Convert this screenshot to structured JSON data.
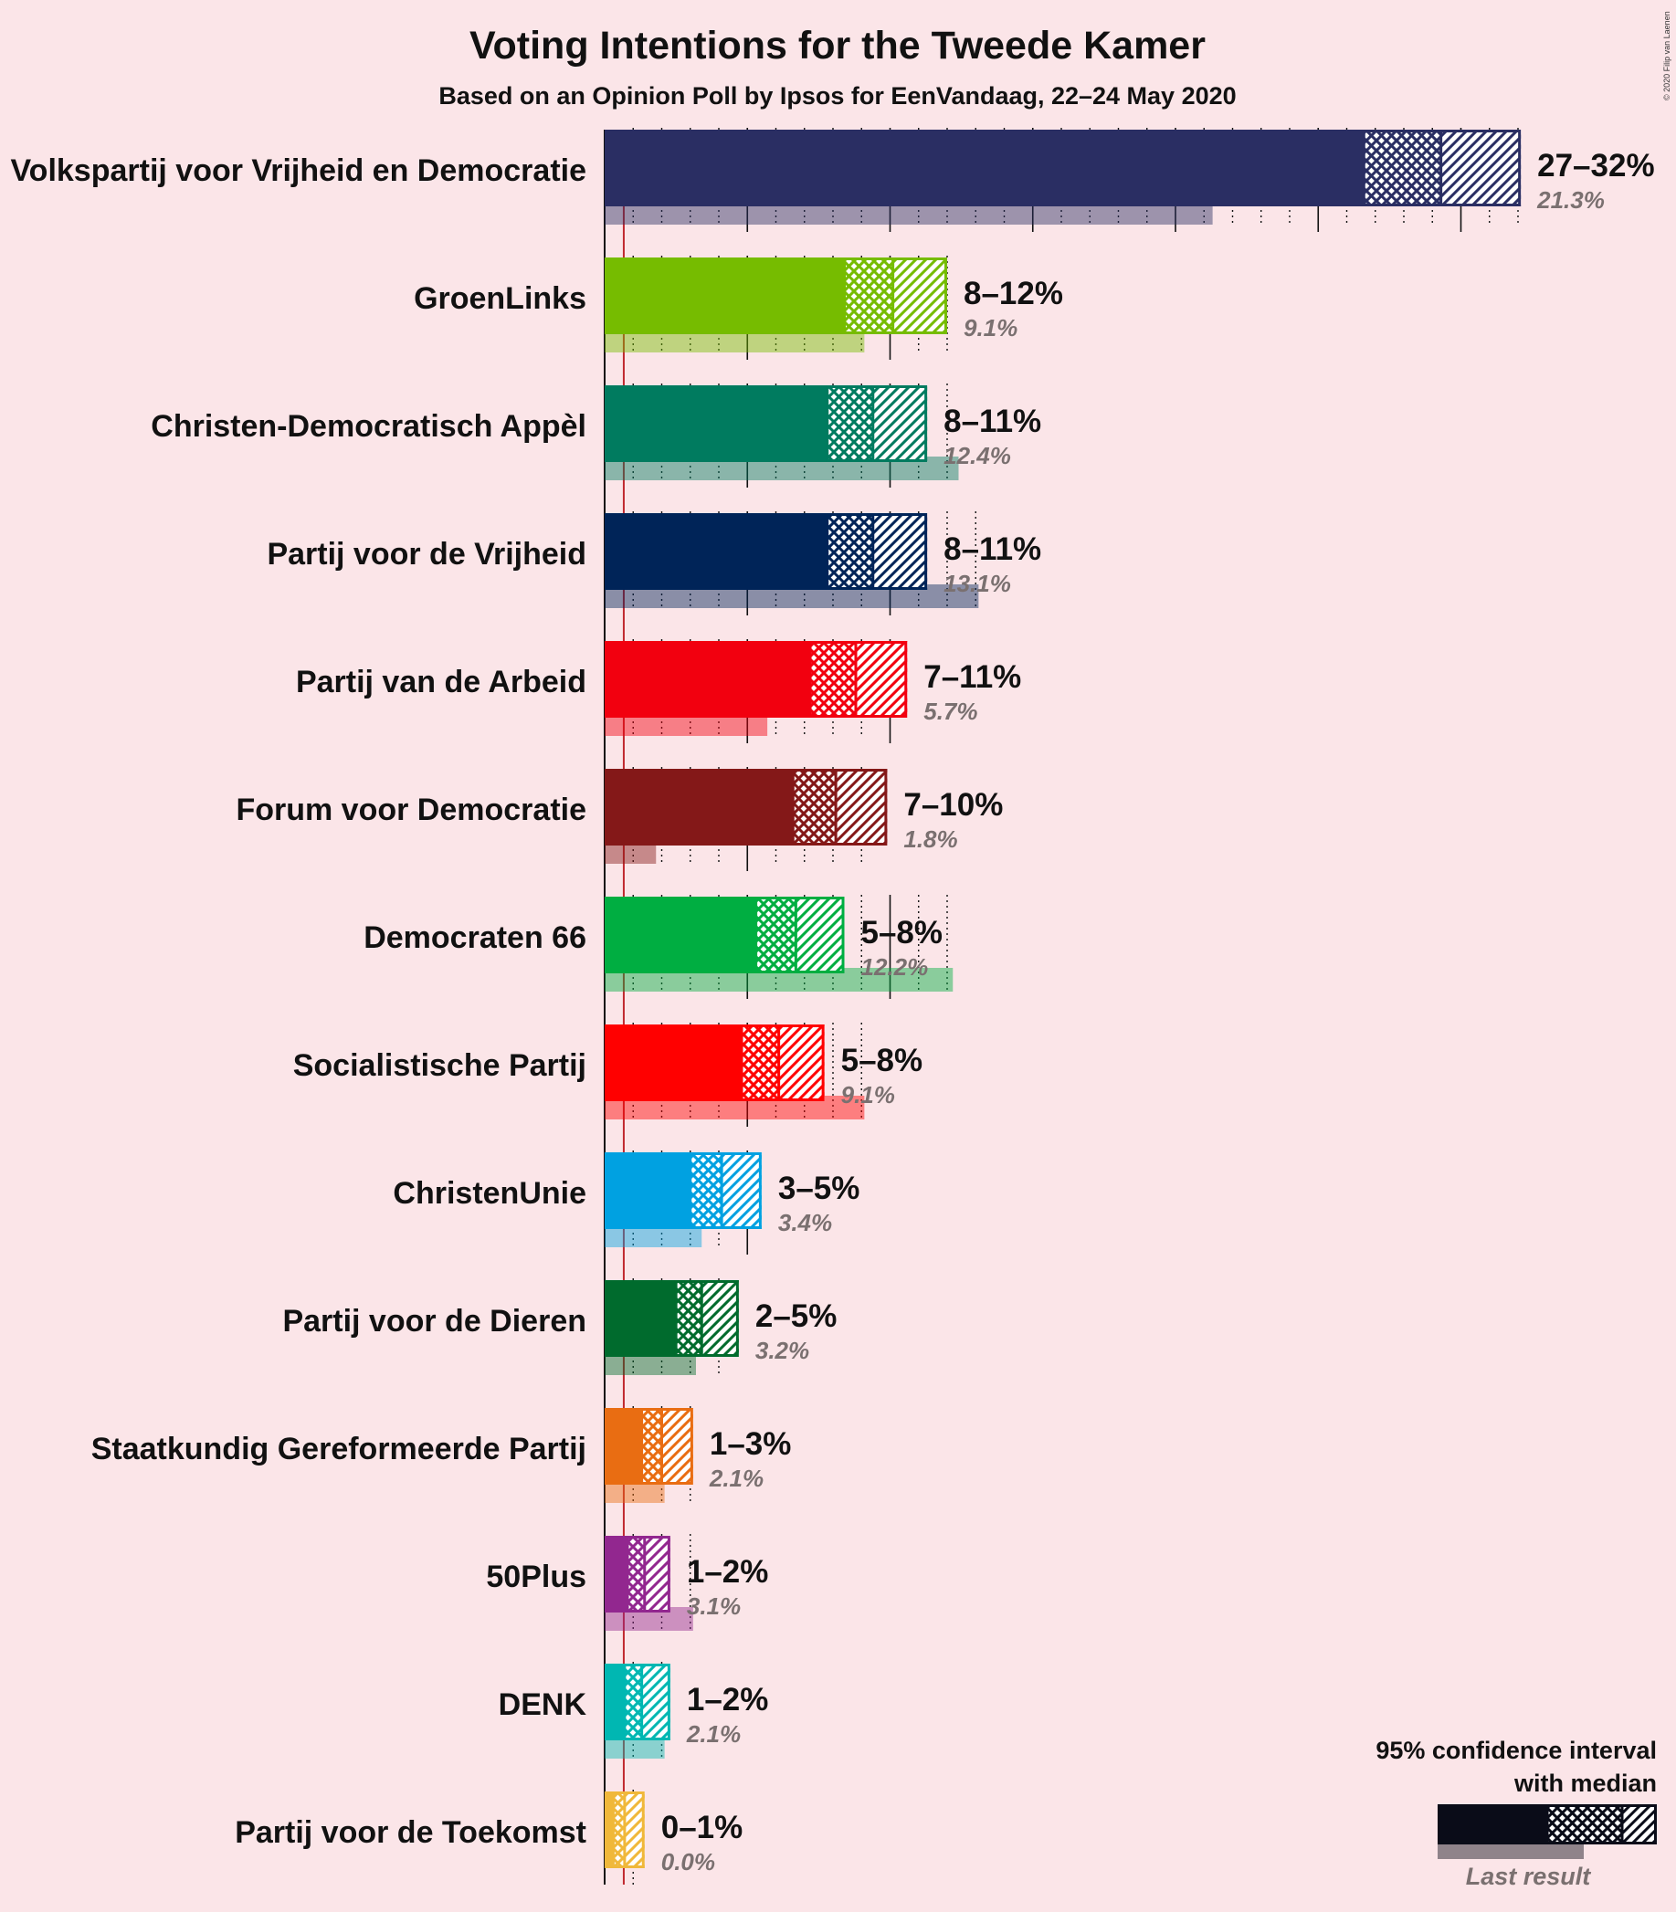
{
  "title": "Voting Intentions for the Tweede Kamer",
  "subtitle": "Based on an Opinion Poll by Ipsos for EenVandaag, 22–24 May 2020",
  "copyright": "© 2020 Filip van Laenen",
  "legend": {
    "line1": "95% confidence interval",
    "line2": "with median",
    "last_result": "Last result",
    "color": "#0a0c18"
  },
  "threshold_color": "#c0282f",
  "chart_data": {
    "type": "bar",
    "orientation": "horizontal",
    "x_unit": "%",
    "threshold": 0.67,
    "series": [
      {
        "name": "Volkspartij voor Vrijheid en Democratie",
        "label": "27–32%",
        "low": 26.6,
        "median": 29.3,
        "high": 32.1,
        "last": 21.3,
        "last_label": "21.3%",
        "color": "#2a2e63"
      },
      {
        "name": "GroenLinks",
        "label": "8–12%",
        "low": 8.4,
        "median": 10.1,
        "high": 12.0,
        "last": 9.1,
        "last_label": "9.1%",
        "color": "#76bc00"
      },
      {
        "name": "Christen-Democratisch Appèl",
        "label": "8–11%",
        "low": 7.8,
        "median": 9.4,
        "high": 11.3,
        "last": 12.4,
        "last_label": "12.4%",
        "color": "#007b5f"
      },
      {
        "name": "Partij voor de Vrijheid",
        "label": "8–11%",
        "low": 7.8,
        "median": 9.4,
        "high": 11.3,
        "last": 13.1,
        "last_label": "13.1%",
        "color": "#002458"
      },
      {
        "name": "Partij van de Arbeid",
        "label": "7–11%",
        "low": 7.2,
        "median": 8.8,
        "high": 10.6,
        "last": 5.7,
        "last_label": "5.7%",
        "color": "#f2000f"
      },
      {
        "name": "Forum voor Democratie",
        "label": "7–10%",
        "low": 6.6,
        "median": 8.1,
        "high": 9.9,
        "last": 1.8,
        "last_label": "1.8%",
        "color": "#841818"
      },
      {
        "name": "Democraten 66",
        "label": "5–8%",
        "low": 5.3,
        "median": 6.7,
        "high": 8.4,
        "last": 12.2,
        "last_label": "12.2%",
        "color": "#00ae41"
      },
      {
        "name": "Socialistische Partij",
        "label": "5–8%",
        "low": 4.8,
        "median": 6.1,
        "high": 7.7,
        "last": 9.1,
        "last_label": "9.1%",
        "color": "#ff0000"
      },
      {
        "name": "ChristenUnie",
        "label": "3–5%",
        "low": 3.0,
        "median": 4.1,
        "high": 5.5,
        "last": 3.4,
        "last_label": "3.4%",
        "color": "#00a1e1"
      },
      {
        "name": "Partij voor de Dieren",
        "label": "2–5%",
        "low": 2.5,
        "median": 3.4,
        "high": 4.7,
        "last": 3.2,
        "last_label": "3.2%",
        "color": "#006b2d"
      },
      {
        "name": "Staatkundig Gereformeerde Partij",
        "label": "1–3%",
        "low": 1.3,
        "median": 2.0,
        "high": 3.1,
        "last": 2.1,
        "last_label": "2.1%",
        "color": "#e96d12"
      },
      {
        "name": "50Plus",
        "label": "1–2%",
        "low": 0.8,
        "median": 1.4,
        "high": 2.3,
        "last": 3.1,
        "last_label": "3.1%",
        "color": "#92278f"
      },
      {
        "name": "DENK",
        "label": "1–2%",
        "low": 0.7,
        "median": 1.3,
        "high": 2.3,
        "last": 2.1,
        "last_label": "2.1%",
        "color": "#00b7b2"
      },
      {
        "name": "Partij voor de Toekomst",
        "label": "0–1%",
        "low": 0.3,
        "median": 0.7,
        "high": 1.4,
        "last": 0.0,
        "last_label": "0.0%",
        "color": "#f0b83a"
      }
    ]
  }
}
